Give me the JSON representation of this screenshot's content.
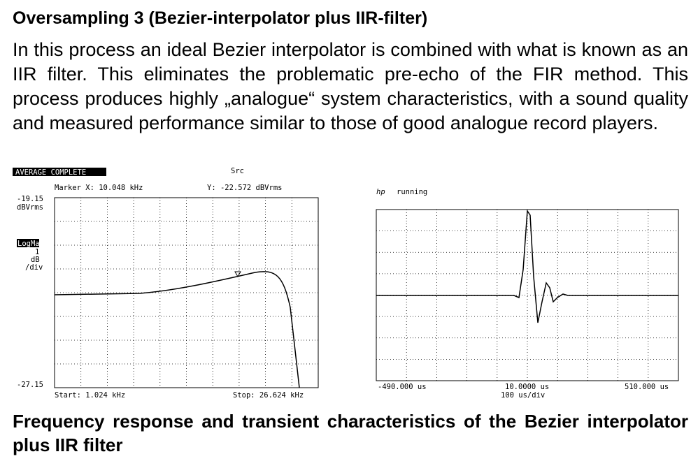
{
  "header": {
    "title": "Oversampling 3 (Bezier-interpolator plus IIR-filter)"
  },
  "body": {
    "paragraph": "In this process an ideal Bezier interpolator is combined with what is known as an IIR filter. This eliminates the problematic pre-echo of the FIR method. This process produces highly „analogue“ system characteristics, with a sound quality and measured performance similar to those of good analogue record players."
  },
  "figure": {
    "left": {
      "status": "AVERAGE COMPLETE",
      "source": "Src",
      "marker_x": "Marker X: 10.048 kHz",
      "marker_y": "Y: -22.572 dBVrms",
      "top_value": "-19.15",
      "unit": "dBVrms",
      "mode": "LogMag",
      "scale": "1",
      "scale_unit": "dB",
      "per_div": "/div",
      "bottom_value": "-27.15",
      "start": "Start: 1.024 kHz",
      "stop": "Stop: 26.624 kHz"
    },
    "right": {
      "status": "running",
      "x_left": "-490.000 us",
      "x_center": "10.0000 us",
      "x_div": "100  us/div",
      "x_right": "510.000 us"
    }
  },
  "caption": "Frequency response and transient characteristics of the Bezier interpolator plus IIR filter"
}
